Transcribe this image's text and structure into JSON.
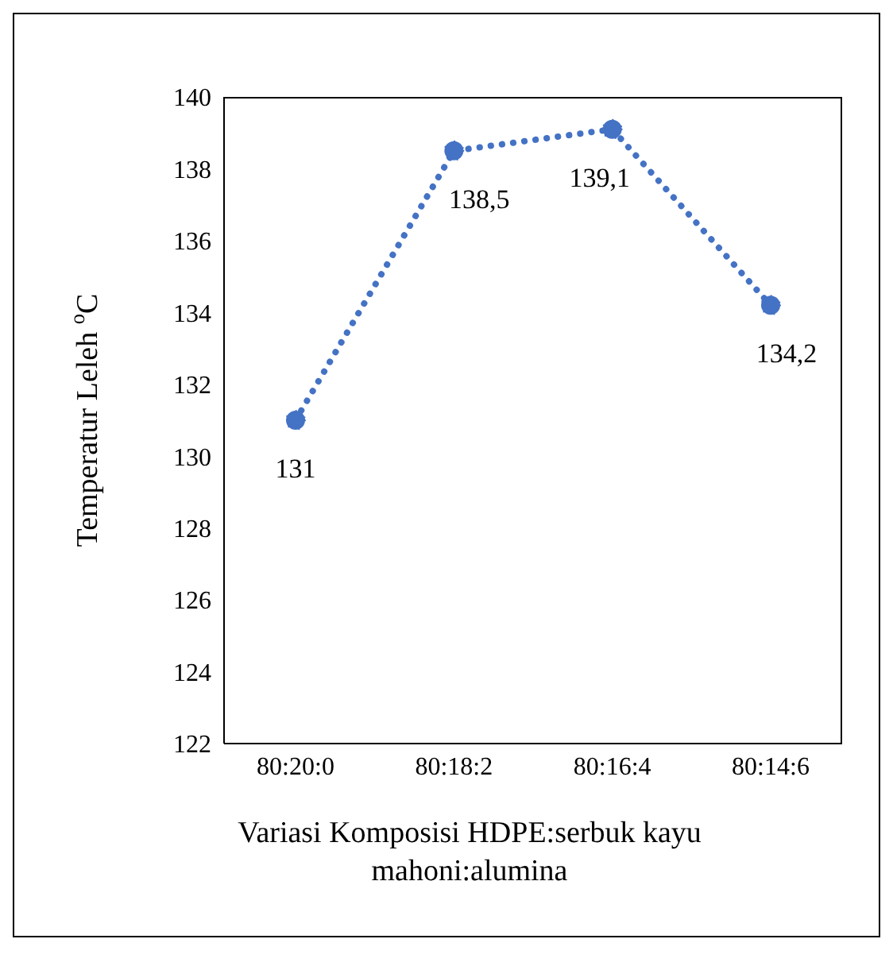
{
  "chart_data": {
    "type": "line",
    "xlabel": "Variasi Komposisi HDPE:serbuk kayu mahoni:alumina",
    "ylabel": "Temperatur Leleh $^{o}$C",
    "categories": [
      "80:20:0",
      "80:18:2",
      "80:16:4",
      "80:14:6"
    ],
    "series": [
      {
        "color": "#4472c4",
        "values": [
          131,
          138.5,
          139.1,
          134.2
        ],
        "value_labels": [
          "131",
          "138,5",
          "139,1",
          "134,2"
        ]
      }
    ],
    "ylim": [
      122,
      140
    ],
    "yticks": [
      122,
      124,
      126,
      128,
      130,
      132,
      134,
      136,
      138,
      140
    ],
    "grid": false,
    "legend": false,
    "marker": "circle",
    "line_style": "dotted"
  }
}
